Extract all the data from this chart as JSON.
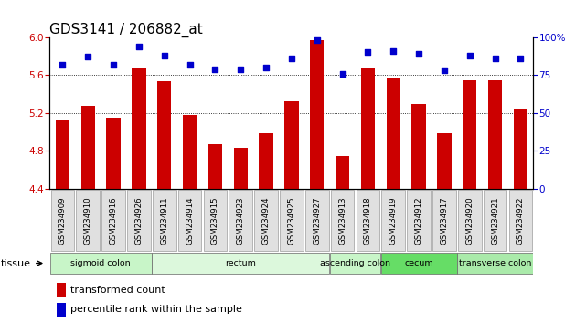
{
  "title": "GDS3141 / 206882_at",
  "samples": [
    "GSM234909",
    "GSM234910",
    "GSM234916",
    "GSM234926",
    "GSM234911",
    "GSM234914",
    "GSM234915",
    "GSM234923",
    "GSM234924",
    "GSM234925",
    "GSM234927",
    "GSM234913",
    "GSM234918",
    "GSM234919",
    "GSM234912",
    "GSM234917",
    "GSM234920",
    "GSM234921",
    "GSM234922"
  ],
  "bar_values": [
    5.13,
    5.28,
    5.15,
    5.68,
    5.54,
    5.18,
    4.87,
    4.83,
    4.99,
    5.32,
    5.97,
    4.75,
    5.68,
    5.57,
    5.3,
    4.99,
    5.55,
    5.55,
    5.25
  ],
  "dot_values": [
    82,
    87,
    82,
    94,
    88,
    82,
    79,
    79,
    80,
    86,
    98,
    76,
    90,
    91,
    89,
    78,
    88,
    86,
    86
  ],
  "bar_color": "#cc0000",
  "dot_color": "#0000cc",
  "ylim_left": [
    4.4,
    6.0
  ],
  "ylim_right": [
    0,
    100
  ],
  "yticks_left": [
    4.4,
    4.8,
    5.2,
    5.6,
    6.0
  ],
  "yticks_right": [
    0,
    25,
    50,
    75,
    100
  ],
  "grid_values": [
    4.8,
    5.2,
    5.6
  ],
  "tissue_groups": [
    {
      "label": "sigmoid colon",
      "start": 0,
      "end": 4,
      "color": "#c8f5c8"
    },
    {
      "label": "rectum",
      "start": 4,
      "end": 11,
      "color": "#dcf8dc"
    },
    {
      "label": "ascending colon",
      "start": 11,
      "end": 13,
      "color": "#c8f5c8"
    },
    {
      "label": "cecum",
      "start": 13,
      "end": 16,
      "color": "#66dd66"
    },
    {
      "label": "transverse colon",
      "start": 16,
      "end": 19,
      "color": "#aaeaaa"
    }
  ],
  "legend_bar_label": "transformed count",
  "legend_dot_label": "percentile rank within the sample",
  "tissue_label": "tissue",
  "bg_color": "#ffffff",
  "title_fontsize": 11,
  "tick_fontsize": 7.5,
  "legend_fontsize": 8
}
